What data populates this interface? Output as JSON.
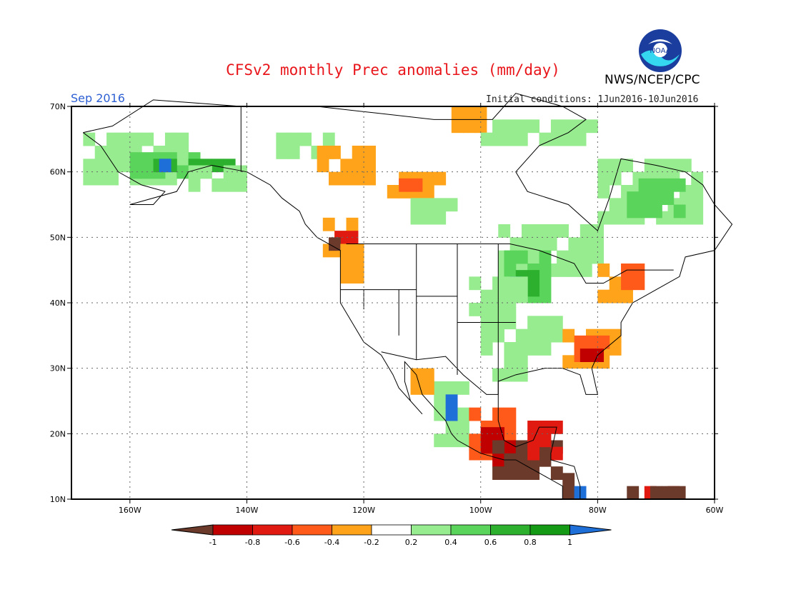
{
  "header": {
    "title": "CFSv2 monthly Prec anomalies (mm/day)",
    "org": "NWS/NCEP/CPC",
    "logo_text": "NOAA",
    "month": "Sep 2016",
    "initial_conditions": "Initial conditions: 1Jun2016-10Jun2016"
  },
  "map": {
    "lon_ticks": [
      "160W",
      "140W",
      "120W",
      "100W",
      "80W",
      "60W"
    ],
    "lat_ticks": [
      "70N",
      "60N",
      "50N",
      "40N",
      "30N",
      "20N",
      "10N"
    ],
    "lon_range": [
      -170,
      -60
    ],
    "lat_range": [
      10,
      70
    ],
    "grid": true,
    "projection": "lat-lon"
  },
  "legend": {
    "labels": [
      "-1",
      "-0.8",
      "-0.6",
      "-0.4",
      "-0.2",
      "0.2",
      "0.4",
      "0.6",
      "0.8",
      "1"
    ],
    "colors": [
      "#6b3a2a",
      "#c00000",
      "#e01a10",
      "#ff5a1a",
      "#ffa41a",
      "#ffffff",
      "#98ec90",
      "#5ad45a",
      "#2db02d",
      "#159a15",
      "#1f6fd8"
    ]
  },
  "anomaly_regions": [
    {
      "name": "Alaska",
      "level": "wet"
    },
    {
      "name": "Upper Midwest",
      "level": "wet"
    },
    {
      "name": "Canadian Arctic",
      "level": "dry"
    },
    {
      "name": "Pacific Northwest coast",
      "level": "very-dry"
    },
    {
      "name": "Southeast US",
      "level": "dry"
    },
    {
      "name": "Southern Mexico / Central America",
      "level": "very-dry"
    },
    {
      "name": "Sierra Madre Occidental",
      "level": "very-wet"
    },
    {
      "name": "Eastern Canada",
      "level": "wet"
    }
  ]
}
